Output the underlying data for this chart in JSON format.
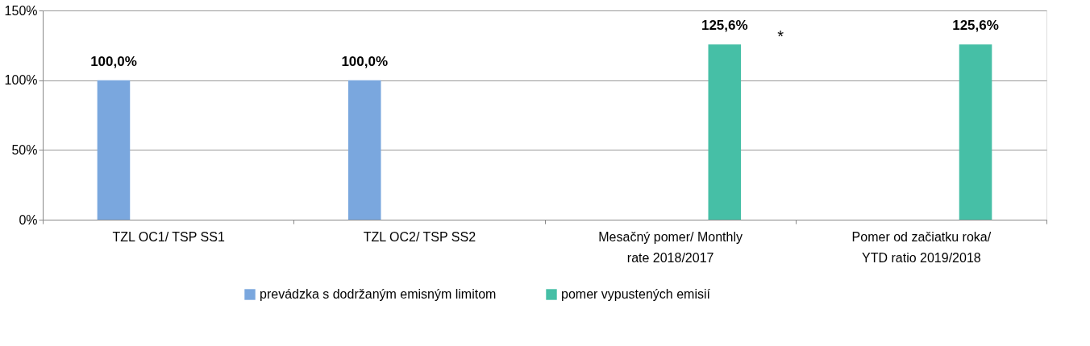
{
  "chart_data": {
    "type": "bar",
    "categories": [
      "TZL OC1/ TSP SS1",
      "TZL OC2/ TSP SS2",
      "Mesačný pomer/ Monthly\nrate   2018/2017",
      "Pomer  od začiatku roka/\nYTD ratio  2019/2018"
    ],
    "series": [
      {
        "name": "prevádzka s dodržaným emisným limitom",
        "color": "#7aa7de",
        "values": [
          100.0,
          100.0,
          null,
          null
        ],
        "value_labels": [
          "100,0%",
          "100,0%",
          null,
          null
        ]
      },
      {
        "name": "pomer vypustených emisií",
        "color": "#46bfa6",
        "values": [
          null,
          null,
          125.6,
          125.6
        ],
        "value_labels": [
          null,
          null,
          "125,6%",
          "125,6%"
        ]
      }
    ],
    "ylim": [
      0,
      150
    ],
    "yticks": [
      {
        "value": 0,
        "label": "0%"
      },
      {
        "value": 50,
        "label": "50%"
      },
      {
        "value": 100,
        "label": "100%"
      },
      {
        "value": 150,
        "label": "150%"
      }
    ],
    "annotations": [
      "*"
    ],
    "grid": "y",
    "legend": "bottom"
  }
}
